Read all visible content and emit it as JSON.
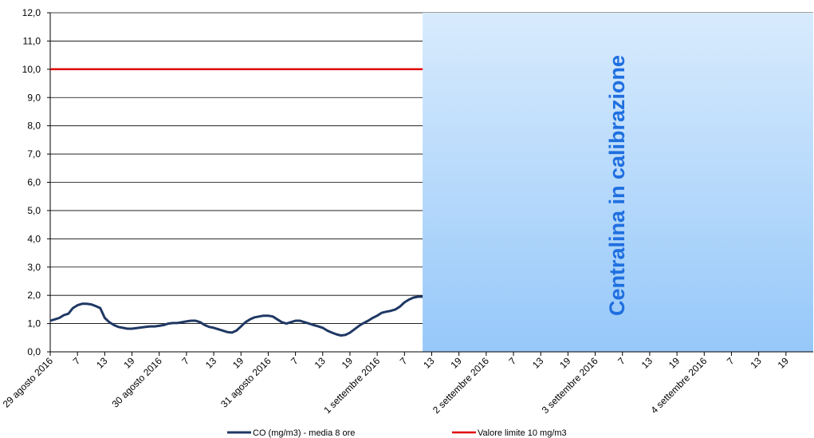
{
  "chart_data": {
    "type": "line",
    "ylim": [
      0,
      12
    ],
    "y_ticks": [
      "0,0",
      "1,0",
      "2,0",
      "3,0",
      "4,0",
      "5,0",
      "6,0",
      "7,0",
      "8,0",
      "9,0",
      "10,0",
      "11,0",
      "12,0"
    ],
    "x_tick_labels": [
      "29 agosto 2016",
      "7",
      "13",
      "19",
      "30 agosto 2016",
      "7",
      "13",
      "19",
      "31 agosto 2016",
      "7",
      "13",
      "19",
      "1 settembre 2016",
      "7",
      "13",
      "19",
      "2 settembre 2016",
      "7",
      "13",
      "19",
      "3 settembre 2016",
      "7",
      "13",
      "19",
      "4 settembre 2016",
      "7",
      "13",
      "19"
    ],
    "x_hours_range": [
      0,
      168
    ],
    "grid": "horizontal",
    "series": [
      {
        "name": "CO  (mg/m3) - media 8 ore",
        "color": "#1f3864",
        "x_hours": [
          0,
          1,
          2,
          3,
          4,
          5,
          6,
          7,
          8,
          9,
          10,
          11,
          12,
          13,
          14,
          15,
          16,
          17,
          18,
          19,
          20,
          21,
          22,
          23,
          24,
          25,
          26,
          27,
          28,
          29,
          30,
          31,
          32,
          33,
          34,
          35,
          36,
          37,
          38,
          39,
          40,
          41,
          42,
          43,
          44,
          45,
          46,
          47,
          48,
          49,
          50,
          51,
          52,
          53,
          54,
          55,
          56,
          57,
          58,
          59,
          60,
          61,
          62,
          63,
          64,
          65,
          66,
          67,
          68,
          69,
          70,
          71,
          72,
          73,
          74,
          75,
          76,
          77,
          78,
          79,
          80,
          81,
          82
        ],
        "values": [
          1.1,
          1.15,
          1.2,
          1.3,
          1.35,
          1.55,
          1.65,
          1.7,
          1.7,
          1.68,
          1.62,
          1.55,
          1.2,
          1.05,
          0.95,
          0.88,
          0.85,
          0.82,
          0.82,
          0.84,
          0.86,
          0.88,
          0.9,
          0.9,
          0.92,
          0.95,
          1.0,
          1.02,
          1.02,
          1.05,
          1.08,
          1.1,
          1.1,
          1.05,
          0.95,
          0.88,
          0.85,
          0.8,
          0.75,
          0.7,
          0.68,
          0.75,
          0.9,
          1.05,
          1.15,
          1.22,
          1.25,
          1.28,
          1.28,
          1.25,
          1.15,
          1.05,
          1.0,
          1.05,
          1.1,
          1.1,
          1.05,
          1.0,
          0.95,
          0.9,
          0.85,
          0.75,
          0.68,
          0.62,
          0.58,
          0.6,
          0.68,
          0.8,
          0.92,
          1.02,
          1.1,
          1.2,
          1.28,
          1.38,
          1.42,
          1.45,
          1.5,
          1.6,
          1.75,
          1.85,
          1.92,
          1.95,
          1.95
        ]
      },
      {
        "name": "Valore limite 10 mg/m3",
        "color": "#e00000",
        "x_hours": [
          0,
          82
        ],
        "values": [
          10,
          10
        ]
      }
    ],
    "annotations": [
      {
        "text": "Centralina in calibrazione",
        "x_range_hours": [
          82,
          168
        ],
        "fill_top": "#d8ebfd",
        "fill_bottom": "#96c8f9"
      }
    ],
    "legend": {
      "placement": "bottom"
    }
  }
}
